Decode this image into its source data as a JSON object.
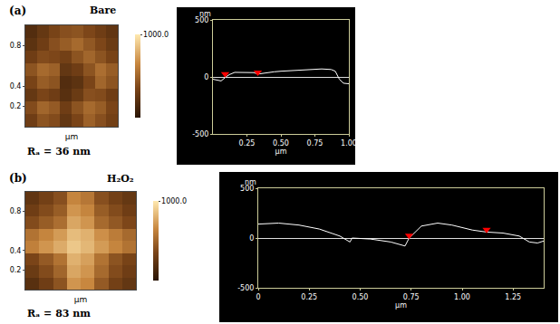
{
  "chart_data": [
    {
      "type": "heatmap",
      "panel_label": "(a)",
      "sample": "Bare",
      "roughness_label": "Rₐ = 36 nm",
      "x": [
        0.0625,
        0.1875,
        0.3125,
        0.4375,
        0.5625,
        0.6875,
        0.8125,
        0.9375
      ],
      "y": [
        0.0625,
        0.1875,
        0.3125,
        0.4375,
        0.5625,
        0.6875,
        0.8125,
        0.9375
      ],
      "z": [
        [
          300,
          420,
          380,
          250,
          350,
          480,
          400,
          320
        ],
        [
          380,
          500,
          450,
          300,
          420,
          520,
          460,
          350
        ],
        [
          260,
          350,
          300,
          200,
          280,
          400,
          380,
          300
        ],
        [
          340,
          460,
          420,
          180,
          220,
          350,
          500,
          420
        ],
        [
          420,
          520,
          480,
          250,
          300,
          420,
          540,
          460
        ],
        [
          300,
          380,
          360,
          320,
          420,
          500,
          420,
          340
        ],
        [
          220,
          300,
          400,
          460,
          520,
          440,
          360,
          280
        ],
        [
          180,
          260,
          340,
          400,
          420,
          360,
          300,
          240
        ]
      ],
      "xlim": [
        0,
        1
      ],
      "ylim": [
        0,
        1
      ],
      "yticks": [
        0.2,
        0.4,
        0.8
      ],
      "x_label": "µm",
      "zlim": [
        0,
        1000
      ],
      "colorbar_ticks": [
        {
          "value": 1000,
          "label": "1000.0"
        }
      ]
    },
    {
      "type": "line",
      "color": "#ffffff",
      "x": [
        0,
        0.03,
        0.06,
        0.09,
        0.12,
        0.16,
        0.22,
        0.3,
        0.33,
        0.38,
        0.45,
        0.5,
        0.6,
        0.7,
        0.8,
        0.87,
        0.9,
        0.93,
        0.96,
        1.0
      ],
      "values": [
        -20,
        -30,
        -35,
        -5,
        20,
        40,
        40,
        38,
        25,
        35,
        45,
        50,
        55,
        60,
        70,
        65,
        50,
        -20,
        -55,
        -60
      ],
      "xlim": [
        0,
        1
      ],
      "xticks": [
        {
          "value": 0.25,
          "label": "0.25"
        },
        {
          "value": 0.5,
          "label": "0.50"
        },
        {
          "value": 0.75,
          "label": "0.75"
        },
        {
          "value": 1.0,
          "label": "1.00"
        }
      ],
      "ylim": [
        -500,
        500
      ],
      "yticks": [
        -500,
        0,
        500
      ],
      "x_label": "µm",
      "y_label": "nm",
      "grid": false,
      "markers": {
        "x": [
          0.09,
          0.33
        ],
        "values": [
          25,
          40
        ],
        "color": "#ff0000",
        "marker": "triangle-down"
      }
    },
    {
      "type": "heatmap",
      "panel_label": "(b)",
      "sample": "H₂O₂",
      "roughness_label": "Rₐ = 83 nm",
      "x": [
        0.0625,
        0.1875,
        0.3125,
        0.4375,
        0.5625,
        0.6875,
        0.8125,
        0.9375
      ],
      "y": [
        0.0625,
        0.1875,
        0.3125,
        0.4375,
        0.5625,
        0.6875,
        0.8125,
        0.9375
      ],
      "z": [
        [
          200,
          300,
          420,
          700,
          650,
          450,
          320,
          250
        ],
        [
          280,
          380,
          500,
          760,
          700,
          520,
          380,
          300
        ],
        [
          350,
          450,
          560,
          800,
          740,
          560,
          420,
          340
        ],
        [
          620,
          700,
          780,
          880,
          820,
          720,
          640,
          560
        ],
        [
          560,
          640,
          720,
          840,
          800,
          680,
          600,
          520
        ],
        [
          380,
          460,
          540,
          760,
          700,
          520,
          440,
          360
        ],
        [
          300,
          380,
          460,
          700,
          640,
          460,
          380,
          300
        ],
        [
          240,
          320,
          400,
          640,
          580,
          400,
          320,
          260
        ]
      ],
      "xlim": [
        0,
        1
      ],
      "ylim": [
        0,
        1
      ],
      "yticks": [
        0.2,
        0.4,
        0.8
      ],
      "x_label": "µm",
      "zlim": [
        0,
        1000
      ],
      "colorbar_ticks": [
        {
          "value": 1000,
          "label": "1000.0"
        }
      ]
    },
    {
      "type": "line",
      "color": "#ffffff",
      "x": [
        0,
        0.1,
        0.2,
        0.3,
        0.4,
        0.45,
        0.46,
        0.55,
        0.65,
        0.72,
        0.74,
        0.8,
        0.88,
        0.95,
        1.05,
        1.12,
        1.2,
        1.28,
        1.33,
        1.37,
        1.4
      ],
      "values": [
        140,
        150,
        130,
        90,
        20,
        -40,
        0,
        -10,
        -40,
        -80,
        0,
        120,
        150,
        130,
        80,
        60,
        50,
        20,
        -40,
        -50,
        -30
      ],
      "xlim": [
        0,
        1.4
      ],
      "xticks": [
        0,
        {
          "value": 0.25,
          "label": "0.25"
        },
        {
          "value": 0.5,
          "label": "0.50"
        },
        {
          "value": 0.75,
          "label": "0.75"
        },
        {
          "value": 1.0,
          "label": "1.00"
        },
        {
          "value": 1.25,
          "label": "1.25"
        }
      ],
      "ylim": [
        -500,
        500
      ],
      "yticks": [
        -500,
        0,
        500
      ],
      "x_label": "µm",
      "y_label": "nm",
      "grid": false,
      "markers": {
        "x": [
          0.74,
          1.12
        ],
        "values": [
          25,
          85
        ],
        "color": "#ff0000",
        "marker": "triangle-down"
      }
    }
  ]
}
